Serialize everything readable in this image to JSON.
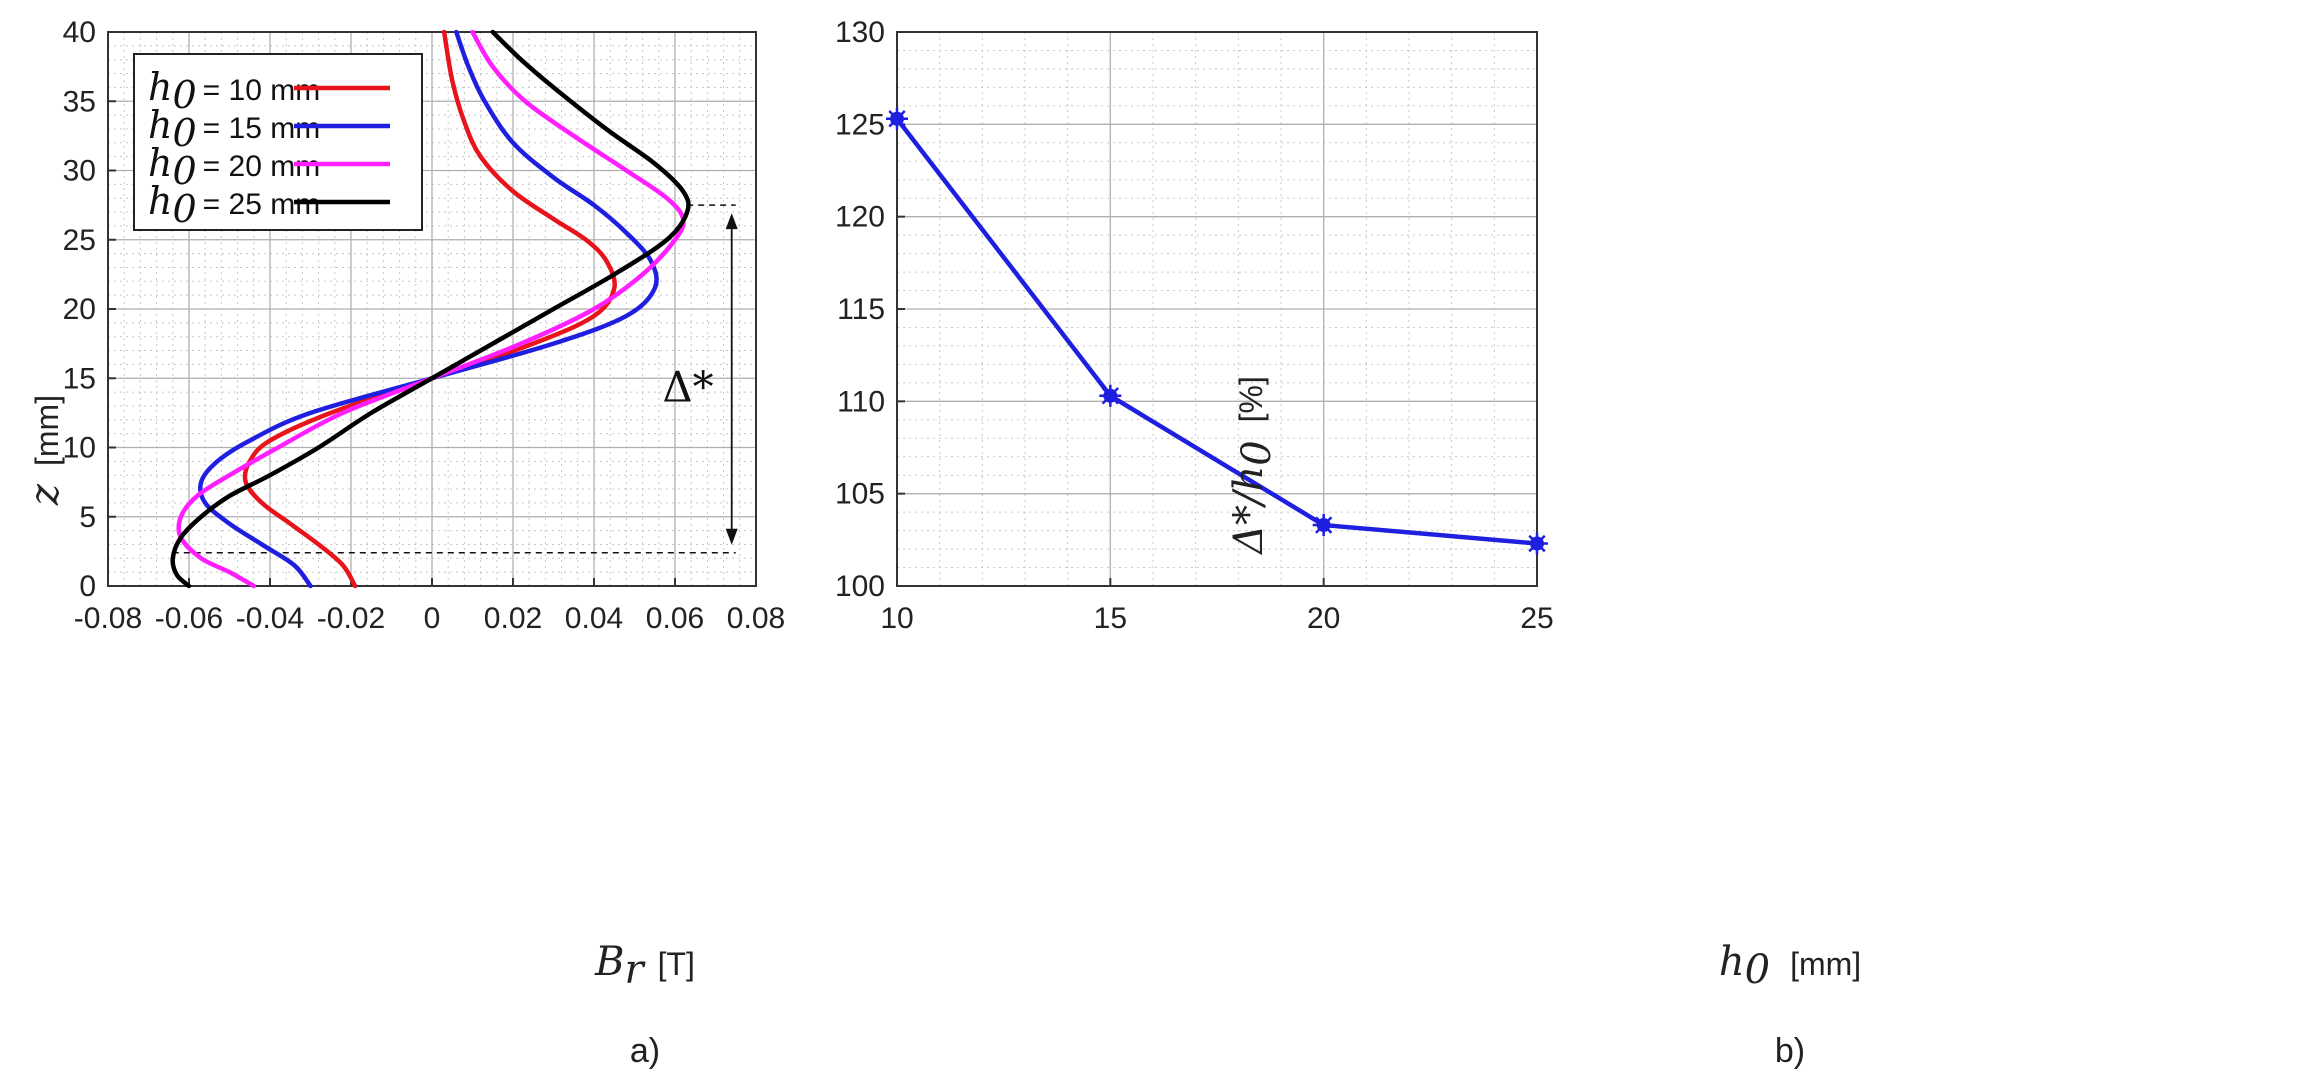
{
  "chart_data": [
    {
      "panel": "a)",
      "type": "line",
      "xlabel_symbol": "B",
      "xlabel_sub": "r",
      "xlabel_unit": "[T]",
      "ylabel_symbol": "z",
      "ylabel_unit": "[mm]",
      "xlim": [
        -0.08,
        0.08
      ],
      "ylim": [
        0,
        40
      ],
      "xticks": [
        -0.08,
        -0.06,
        -0.04,
        -0.02,
        0,
        0.02,
        0.04,
        0.06,
        0.08
      ],
      "xtick_labels": [
        "-0.08",
        "-0.06",
        "-0.04",
        "-0.02",
        "0",
        "0.02",
        "0.04",
        "0.06",
        "0.08"
      ],
      "yticks": [
        0,
        5,
        10,
        15,
        20,
        25,
        30,
        35,
        40
      ],
      "ytick_labels": [
        "0",
        "5",
        "10",
        "15",
        "20",
        "25",
        "30",
        "35",
        "40"
      ],
      "grid": true,
      "legend_position": "top-left",
      "series": [
        {
          "name_symbol": "h",
          "name_sub": "0",
          "name_value": "= 10 mm",
          "color": "#e8141c",
          "x": [
            -0.019,
            -0.022,
            -0.028,
            -0.035,
            -0.042,
            -0.046,
            -0.045,
            -0.04,
            -0.025,
            0.0,
            0.025,
            0.04,
            0.045,
            0.043,
            0.038,
            0.03,
            0.02,
            0.012,
            0.008,
            0.005,
            0.003
          ],
          "y": [
            0,
            1.5,
            3,
            4.5,
            6,
            7.5,
            9,
            10.5,
            12.5,
            15,
            17.5,
            19.5,
            21.5,
            23.5,
            25,
            26.5,
            28.5,
            31,
            33.5,
            36.5,
            40
          ]
        },
        {
          "name_symbol": "h",
          "name_sub": "0",
          "name_value": "= 15 mm",
          "color": "#1f1fe0",
          "x": [
            -0.03,
            -0.034,
            -0.042,
            -0.05,
            -0.056,
            -0.057,
            -0.053,
            -0.045,
            -0.03,
            0.0,
            0.03,
            0.048,
            0.055,
            0.054,
            0.048,
            0.04,
            0.03,
            0.02,
            0.013,
            0.009,
            0.006
          ],
          "y": [
            0,
            1.5,
            3,
            4.5,
            6,
            7.5,
            9,
            10.5,
            12.5,
            15,
            17.5,
            19.5,
            21.5,
            23.5,
            25.5,
            27.5,
            29.5,
            32,
            35,
            37.5,
            40
          ]
        },
        {
          "name_symbol": "h",
          "name_sub": "0",
          "name_value": "= 20 mm",
          "color": "#ff1fff",
          "x": [
            -0.044,
            -0.05,
            -0.057,
            -0.062,
            -0.062,
            -0.058,
            -0.05,
            -0.038,
            -0.022,
            0.0,
            0.022,
            0.04,
            0.052,
            0.06,
            0.062,
            0.058,
            0.048,
            0.035,
            0.023,
            0.015,
            0.01
          ],
          "y": [
            0,
            1,
            2,
            3.5,
            5,
            6.5,
            8,
            10,
            12.5,
            15,
            17.5,
            20,
            22.5,
            25,
            26.5,
            28,
            30,
            32.5,
            35,
            37.5,
            40
          ]
        },
        {
          "name_symbol": "h",
          "name_sub": "0",
          "name_value": "= 25 mm",
          "color": "#000000",
          "x": [
            -0.06,
            -0.063,
            -0.064,
            -0.062,
            -0.057,
            -0.05,
            -0.04,
            -0.028,
            -0.015,
            0.0,
            0.015,
            0.03,
            0.045,
            0.058,
            0.063,
            0.062,
            0.055,
            0.043,
            0.03,
            0.022,
            0.015
          ],
          "y": [
            0,
            0.8,
            2,
            3.5,
            5,
            6.5,
            8,
            10,
            12.5,
            15,
            17.5,
            20,
            22.5,
            25,
            27,
            28.5,
            30.5,
            33,
            36,
            38,
            40
          ]
        }
      ],
      "annotation": {
        "label": "Δ*",
        "z_top": 27.5,
        "z_bottom": 2.4,
        "x_arrow": 0.074,
        "x_top_start": 0.063,
        "x_bottom_start": -0.064
      }
    },
    {
      "panel": "b)",
      "type": "line",
      "xlabel_symbol": "h",
      "xlabel_sub": "0",
      "xlabel_unit": "[mm]",
      "ylabel_symbol": "Δ*/h",
      "ylabel_sub": "0",
      "ylabel_unit": "[%]",
      "xlim": [
        10,
        25
      ],
      "ylim": [
        100,
        130
      ],
      "xticks": [
        10,
        15,
        20,
        25
      ],
      "xtick_labels": [
        "10",
        "15",
        "20",
        "25"
      ],
      "yticks": [
        100,
        105,
        110,
        115,
        120,
        125,
        130
      ],
      "ytick_labels": [
        "100",
        "105",
        "110",
        "115",
        "120",
        "125",
        "130"
      ],
      "grid": true,
      "series": [
        {
          "name": "Δ*/h0",
          "color": "#1f1fe0",
          "x": [
            10,
            15,
            20,
            25
          ],
          "y": [
            125.3,
            110.3,
            103.3,
            102.3
          ]
        }
      ]
    }
  ]
}
